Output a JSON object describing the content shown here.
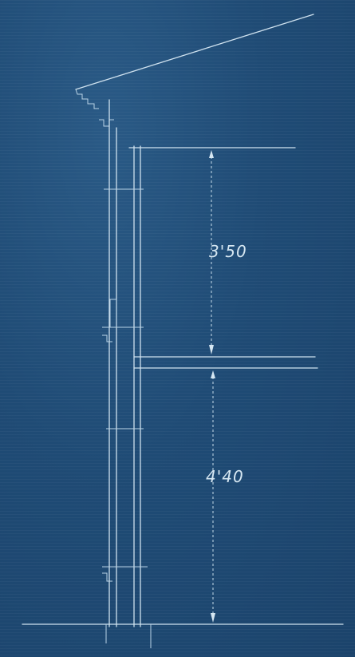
{
  "dimensions": [
    {
      "label": "3'50"
    },
    {
      "label": "4'40"
    }
  ]
}
